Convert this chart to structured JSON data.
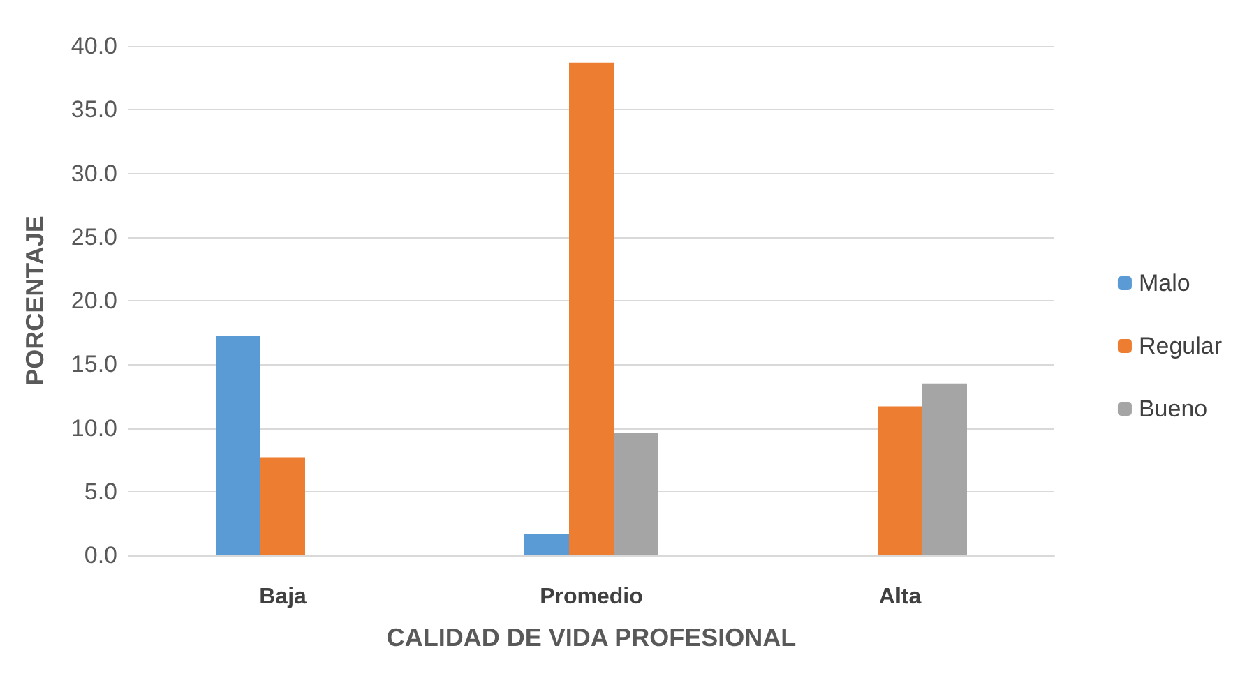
{
  "chart_data": {
    "type": "bar",
    "xlabel": "CALIDAD DE VIDA PROFESIONAL",
    "ylabel": "PORCENTAJE",
    "categories": [
      "Baja",
      "Promedio",
      "Alta"
    ],
    "series": [
      {
        "name": "Malo",
        "color": "#5b9bd5",
        "values": [
          17.2,
          1.7,
          0
        ]
      },
      {
        "name": "Regular",
        "color": "#ed7d31",
        "values": [
          7.7,
          38.7,
          11.7
        ]
      },
      {
        "name": "Bueno",
        "color": "#a5a5a5",
        "values": [
          0,
          9.6,
          13.5
        ]
      }
    ],
    "ylim": [
      0,
      40
    ],
    "yticks": [
      {
        "value": 0,
        "label": "0.0"
      },
      {
        "value": 5,
        "label": "5.0"
      },
      {
        "value": 10,
        "label": "10.0"
      },
      {
        "value": 15,
        "label": "15.0"
      },
      {
        "value": 20,
        "label": "20.0"
      },
      {
        "value": 25,
        "label": "25.0"
      },
      {
        "value": 30,
        "label": "30.0"
      },
      {
        "value": 35,
        "label": "35.0"
      },
      {
        "value": 40,
        "label": "40.0"
      }
    ],
    "grid": true,
    "legend": "right"
  }
}
